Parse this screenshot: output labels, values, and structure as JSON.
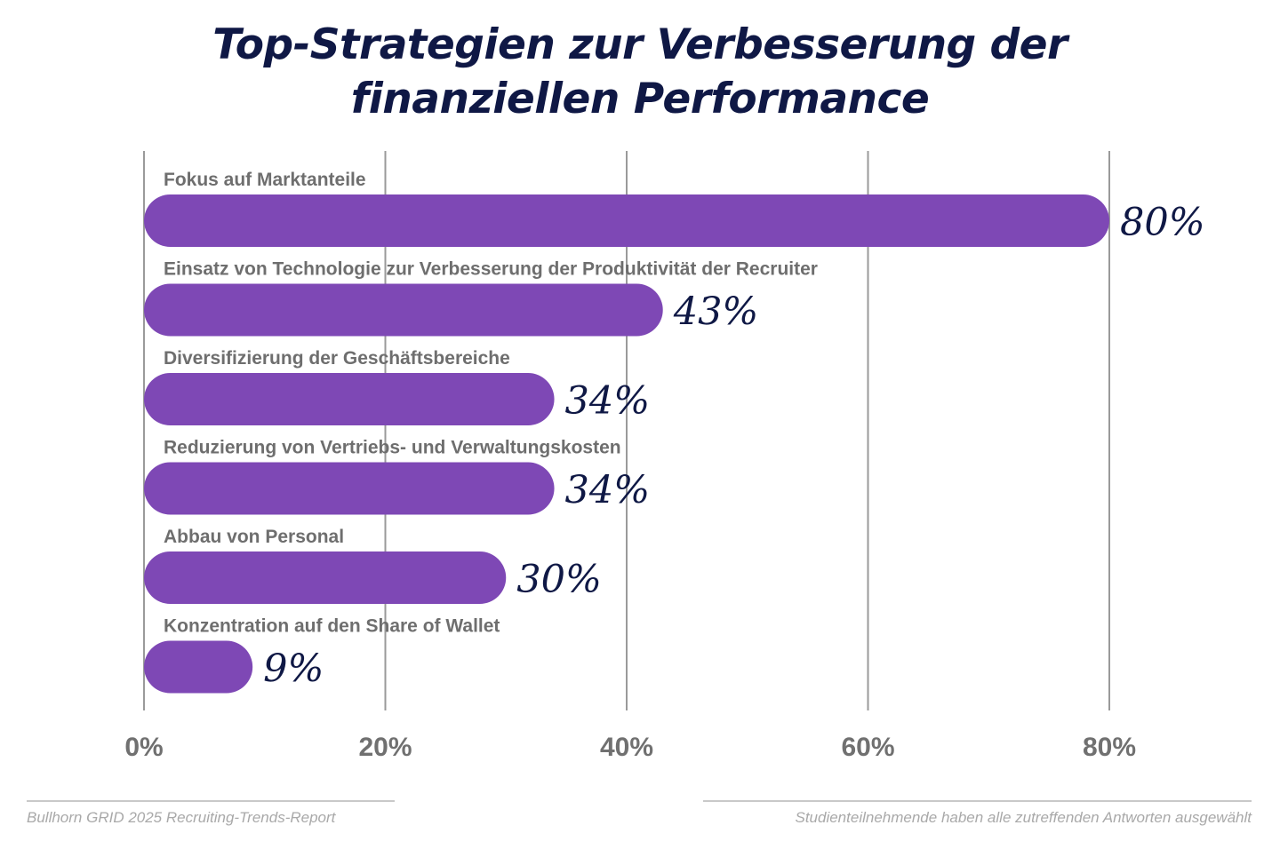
{
  "title": {
    "line1": "Top-Strategien zur Verbesserung der",
    "line2": "finanziellen Performance"
  },
  "chart_data": {
    "type": "bar",
    "orientation": "horizontal",
    "title": "Top-Strategien zur Verbesserung der finanziellen Performance",
    "categories": [
      "Fokus auf Marktanteile",
      "Einsatz von Technologie zur Verbesserung der Produktivität der Recruiter",
      "Diversifizierung der Geschäftsbereiche",
      "Reduzierung von Vertriebs- und Verwaltungskosten",
      "Abbau von Personal",
      "Konzentration auf den Share of Wallet"
    ],
    "values": [
      80,
      43,
      34,
      34,
      30,
      9
    ],
    "value_labels": [
      "80%",
      "43%",
      "34%",
      "34%",
      "30%",
      "9%"
    ],
    "xlim": [
      0,
      80
    ],
    "ticks": [
      0,
      20,
      40,
      60,
      80
    ],
    "tick_labels": [
      "0%",
      "20%",
      "40%",
      "60%",
      "80%"
    ],
    "xlabel": "",
    "ylabel": "",
    "grid": true,
    "bar_color": "#7e48b5",
    "grid_color": "#9a9a9a"
  },
  "footer": {
    "source": "Bullhorn GRID 2025 Recruiting-Trends-Report",
    "note": "Studienteilnehmende haben alle zutreffenden Antworten ausgewählt"
  }
}
